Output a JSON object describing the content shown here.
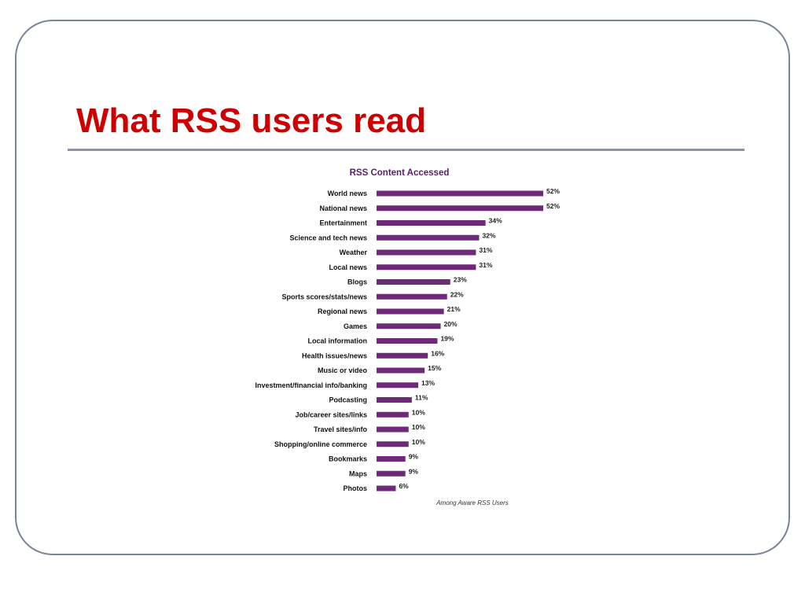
{
  "slide": {
    "title": "What RSS users read"
  },
  "colors": {
    "title": "#cc0000",
    "bar": "#6e2a78",
    "chart_title": "#5b1d6b",
    "frame": "#7a8499"
  },
  "chart_data": {
    "type": "bar",
    "orientation": "horizontal",
    "title": "RSS Content Accessed",
    "note": "Among Aware RSS Users",
    "categories": [
      "World news",
      "National news",
      "Entertainment",
      "Science and tech news",
      "Weather",
      "Local news",
      "Blogs",
      "Sports scores/stats/news",
      "Regional news",
      "Games",
      "Local information",
      "Health issues/news",
      "Music or video",
      "Investment/financial info/banking",
      "Podcasting",
      "Job/career sites/links",
      "Travel sites/info",
      "Shopping/online commerce",
      "Bookmarks",
      "Maps",
      "Photos"
    ],
    "values": [
      52,
      52,
      34,
      32,
      31,
      31,
      23,
      22,
      21,
      20,
      19,
      16,
      15,
      13,
      11,
      10,
      10,
      10,
      9,
      9,
      6
    ],
    "value_labels": [
      "52%",
      "52%",
      "34%",
      "32%",
      "31%",
      "31%",
      "23%",
      "22%",
      "21%",
      "20%",
      "19%",
      "16%",
      "15%",
      "13%",
      "11%",
      "10%",
      "10%",
      "10%",
      "9%",
      "9%",
      "6%"
    ],
    "unit": "%",
    "grid": false,
    "legend": "none"
  }
}
